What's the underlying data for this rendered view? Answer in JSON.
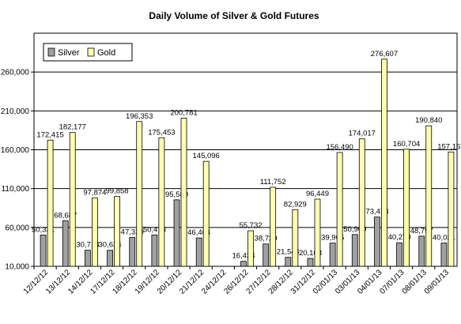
{
  "chart_data": {
    "type": "bar",
    "title": "Daily Volume of  Silver & Gold Futures",
    "xlabel": "",
    "ylabel": "",
    "ylim": [
      10000,
      310000
    ],
    "yticks": [
      10000,
      60000,
      110000,
      160000,
      210000,
      260000
    ],
    "ytick_labels": [
      "10,000",
      "60,000",
      "110,000",
      "160,000",
      "210,000",
      "260,000"
    ],
    "grid": true,
    "legend_position": "top-left",
    "categories": [
      "12/12/12",
      "13/12/12",
      "14/12/12",
      "17/12/12",
      "18/12/12",
      "19/12/12",
      "20/12/12",
      "21/12/12",
      "24/12/12",
      "26/12/12",
      "27/12/12",
      "28/12/12",
      "31/12/12",
      "02/01/13",
      "03/01/13",
      "04/01/13",
      "07/01/13",
      "08/01/13",
      "09/01/13"
    ],
    "series": [
      {
        "name": "Silver",
        "color": "#a0a0a0",
        "values": [
          50331,
          68687,
          30718,
          30634,
          47320,
          50418,
          95580,
          46464,
          null,
          16434,
          38729,
          21544,
          20168,
          39905,
          50900,
          73418,
          40270,
          48797,
          40031
        ],
        "labels": [
          "50,331",
          "68,687",
          "30,718",
          "30,634",
          "47,320",
          "50,418",
          "95,580",
          "46,464",
          "",
          "16,434",
          "38,729",
          "21,544",
          "20,168",
          "39,905",
          "50,900",
          "73,418",
          "40,270",
          "48,797",
          "40,031"
        ]
      },
      {
        "name": "Gold",
        "color": "#ffffb0",
        "values": [
          172415,
          182177,
          97874,
          99858,
          196353,
          175453,
          200781,
          145096,
          null,
          55732,
          111752,
          82929,
          96449,
          156490,
          174017,
          276607,
          160704,
          190840,
          157167
        ],
        "labels": [
          "172,415",
          "182,177",
          "97,874",
          "99,858",
          "196,353",
          "175,453",
          "200,781",
          "145,096",
          "",
          "55,732",
          "111,752",
          "82,929",
          "96,449",
          "156,490",
          "174,017",
          "276,607",
          "160,704",
          "190,840",
          "157,167"
        ]
      }
    ]
  }
}
